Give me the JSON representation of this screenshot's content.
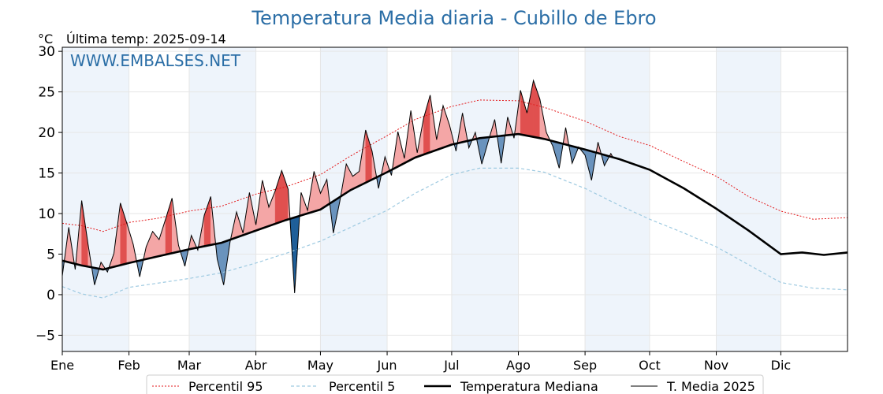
{
  "chart_data": {
    "type": "line",
    "title": "Temperatura Media diaria - Cubillo de Ebro",
    "unit_label": "°C",
    "last_temp_label": "Última temp: 2025-09-14",
    "watermark": "WWW.EMBALSES.NET",
    "ylim": [
      -7,
      30.5
    ],
    "yticks": [
      30,
      25,
      20,
      15,
      10,
      5,
      0,
      -5
    ],
    "ytick_labels": [
      "30",
      "25",
      "20",
      "15",
      "10",
      "5",
      "0",
      "−5"
    ],
    "xlim": [
      1,
      366
    ],
    "months": [
      "Ene",
      "Feb",
      "Mar",
      "Abr",
      "May",
      "Jun",
      "Jul",
      "Ago",
      "Sep",
      "Oct",
      "Nov",
      "Dic"
    ],
    "month_start_days": [
      1,
      32,
      60,
      91,
      121,
      152,
      182,
      213,
      244,
      274,
      305,
      335
    ],
    "grid": true,
    "legend_position": "bottom",
    "colors": {
      "p95": "#e31a1c",
      "p5": "#9ecae1",
      "median": "#000000",
      "current": "#000000",
      "above_fill": "#f4a6a6",
      "above_fill_strong": "#e0504f",
      "below_fill": "#6a93bd",
      "below_fill_strong": "#1f5f99",
      "alt_band": "#eef4fb"
    },
    "series": [
      {
        "name": "Percentil 95",
        "style": "dotted",
        "x": [
          1,
          10,
          20,
          32,
          45,
          60,
          75,
          91,
          105,
          121,
          135,
          152,
          165,
          182,
          195,
          213,
          225,
          244,
          260,
          274,
          290,
          305,
          320,
          335,
          350,
          366
        ],
        "y": [
          8.8,
          8.5,
          7.8,
          8.9,
          9.4,
          10.3,
          10.9,
          12.4,
          13.3,
          14.8,
          17.1,
          19.6,
          21.6,
          23.2,
          24.0,
          23.9,
          23.1,
          21.4,
          19.5,
          18.4,
          16.4,
          14.6,
          12.1,
          10.3,
          9.3,
          9.5
        ]
      },
      {
        "name": "Percentil 5",
        "style": "dashed",
        "x": [
          1,
          10,
          20,
          32,
          45,
          60,
          75,
          91,
          105,
          121,
          135,
          152,
          165,
          182,
          195,
          213,
          225,
          244,
          260,
          274,
          290,
          305,
          320,
          335,
          350,
          366
        ],
        "y": [
          1.0,
          0.1,
          -0.4,
          0.9,
          1.4,
          2.0,
          2.7,
          3.9,
          5.1,
          6.6,
          8.3,
          10.4,
          12.5,
          14.8,
          15.6,
          15.6,
          15.1,
          13.1,
          11.0,
          9.3,
          7.6,
          5.9,
          3.7,
          1.5,
          0.8,
          0.6
        ]
      },
      {
        "name": "Temperatura Mediana",
        "style": "solid-thick",
        "x": [
          1,
          10,
          20,
          32,
          45,
          60,
          75,
          91,
          105,
          121,
          135,
          152,
          165,
          182,
          195,
          213,
          225,
          244,
          260,
          274,
          290,
          305,
          320,
          335,
          345,
          355,
          366
        ],
        "y": [
          4.2,
          3.6,
          3.1,
          3.9,
          4.7,
          5.6,
          6.4,
          7.9,
          9.2,
          10.5,
          12.9,
          15.1,
          16.9,
          18.5,
          19.3,
          19.8,
          19.2,
          17.9,
          16.7,
          15.4,
          13.1,
          10.6,
          7.9,
          5.0,
          5.2,
          4.9,
          5.2
        ]
      },
      {
        "name": "T. Media 2025",
        "style": "solid-thin",
        "x": [
          1,
          4,
          7,
          10,
          13,
          16,
          19,
          22,
          25,
          28,
          31,
          34,
          37,
          40,
          43,
          46,
          49,
          52,
          55,
          58,
          61,
          64,
          67,
          70,
          73,
          76,
          79,
          82,
          85,
          88,
          91,
          94,
          97,
          100,
          103,
          106,
          109,
          112,
          115,
          118,
          121,
          124,
          127,
          130,
          133,
          136,
          139,
          142,
          145,
          148,
          151,
          154,
          157,
          160,
          163,
          166,
          169,
          172,
          175,
          178,
          181,
          184,
          187,
          190,
          193,
          196,
          199,
          202,
          205,
          208,
          211,
          214,
          217,
          220,
          223,
          226,
          229,
          232,
          235,
          238,
          241,
          244,
          247,
          250,
          253,
          256,
          257
        ],
        "y": [
          2.3,
          8.3,
          3.1,
          11.6,
          6.2,
          1.2,
          4.0,
          2.8,
          5.1,
          11.3,
          8.8,
          6.2,
          2.2,
          5.9,
          7.8,
          6.8,
          9.3,
          11.9,
          6.1,
          3.5,
          7.3,
          5.5,
          9.8,
          12.1,
          4.4,
          1.2,
          6.5,
          10.2,
          7.6,
          12.6,
          8.6,
          14.1,
          10.8,
          12.8,
          15.3,
          13.0,
          0.2,
          12.6,
          10.4,
          15.2,
          12.5,
          14.2,
          7.6,
          11.5,
          16.1,
          14.6,
          15.2,
          20.3,
          17.7,
          13.1,
          17.0,
          14.7,
          20.1,
          16.8,
          22.7,
          17.5,
          21.8,
          24.6,
          19.1,
          23.3,
          20.9,
          17.7,
          22.4,
          18.1,
          20.0,
          16.1,
          18.9,
          21.6,
          16.2,
          21.9,
          19.3,
          25.2,
          22.4,
          26.4,
          24.1,
          20.0,
          18.3,
          15.6,
          20.6,
          16.2,
          18.2,
          17.2,
          14.1,
          18.8,
          15.9,
          17.4,
          16.9
        ]
      }
    ]
  }
}
